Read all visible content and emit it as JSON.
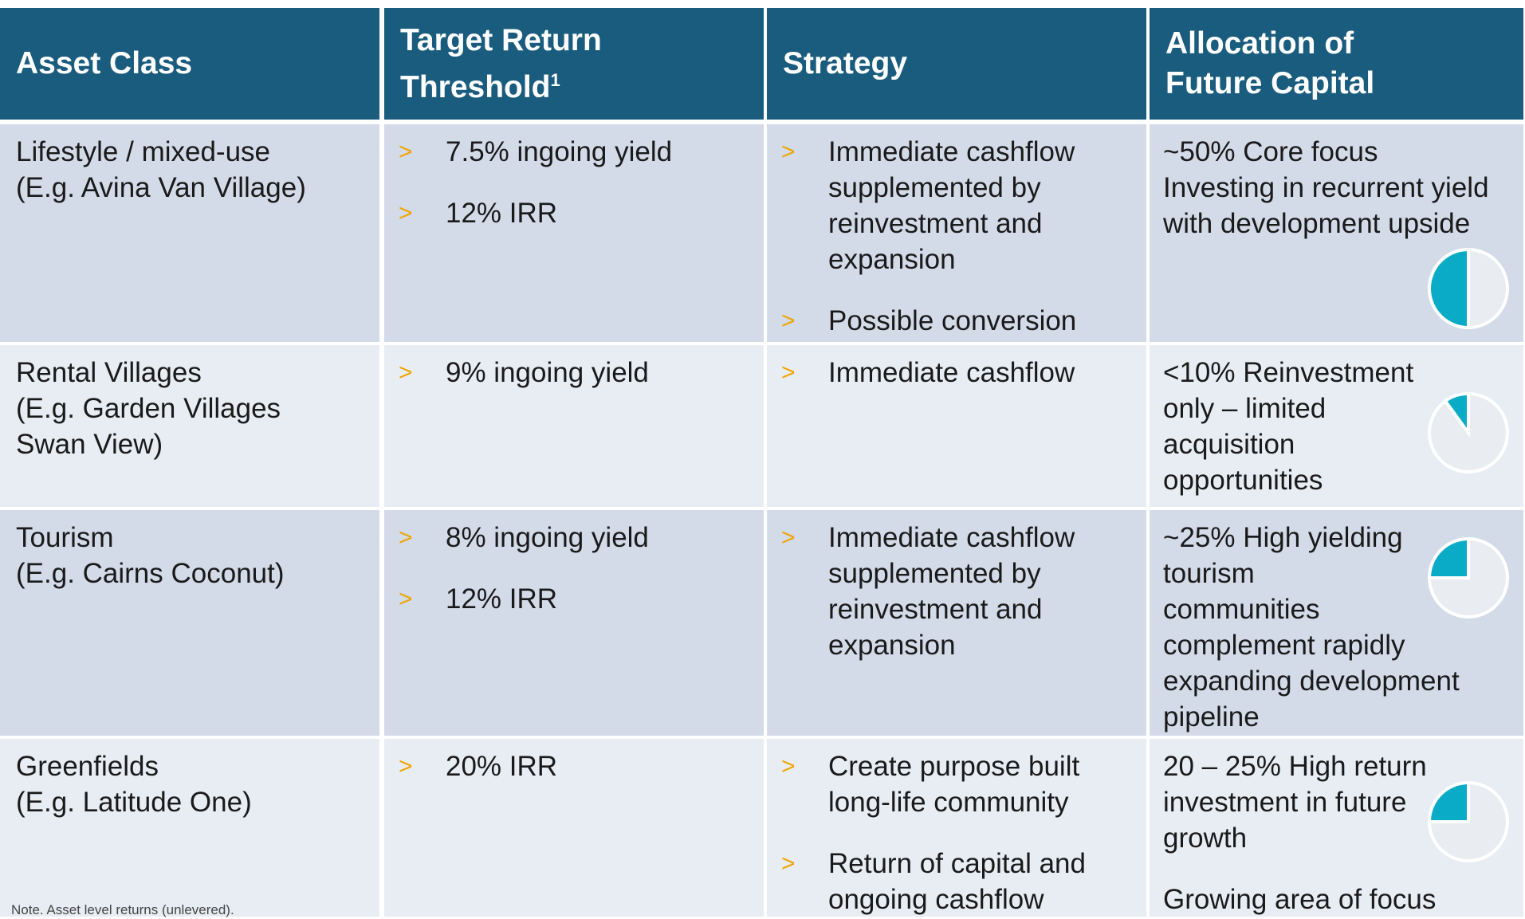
{
  "header": {
    "columns": [
      [
        "Asset Class"
      ],
      [
        "Target Return",
        "Threshold"
      ],
      [
        "Strategy"
      ],
      [
        "Allocation of",
        "Future Capital"
      ]
    ],
    "footnote_marker": "1"
  },
  "bullet": ">",
  "rows": [
    {
      "asset": [
        "Lifestyle / mixed-use",
        "(E.g. Avina Van Village)"
      ],
      "target": [
        [
          "7.5% ingoing yield"
        ],
        [
          "12% IRR"
        ]
      ],
      "strategy": [
        [
          "Immediate cashflow",
          "supplemented by",
          "reinvestment and",
          "expansion"
        ],
        [
          "Possible conversion"
        ]
      ],
      "allocation": [
        [
          "~50% Core focus",
          "Investing in recurrent yield",
          "with development upside"
        ]
      ]
    },
    {
      "asset": [
        "Rental Villages",
        "(E.g. Garden Villages",
        "Swan View)"
      ],
      "target": [
        [
          "9% ingoing yield"
        ]
      ],
      "strategy": [
        [
          "Immediate cashflow"
        ]
      ],
      "allocation": [
        [
          "<10% Reinvestment",
          "only – limited",
          "acquisition",
          "opportunities"
        ]
      ]
    },
    {
      "asset": [
        "Tourism",
        "(E.g. Cairns Coconut)"
      ],
      "target": [
        [
          "8% ingoing yield"
        ],
        [
          "12% IRR"
        ]
      ],
      "strategy": [
        [
          "Immediate cashflow",
          "supplemented by",
          "reinvestment and",
          "expansion"
        ]
      ],
      "allocation": [
        [
          "~25% High yielding",
          "tourism",
          "communities",
          "complement rapidly",
          "expanding development",
          "pipeline"
        ]
      ]
    },
    {
      "asset": [
        "Greenfields",
        "(E.g. Latitude One)"
      ],
      "target": [
        [
          "20% IRR"
        ]
      ],
      "strategy": [
        [
          "Create purpose built",
          "long-life community"
        ],
        [
          "Return of capital and",
          "ongoing cashflow"
        ]
      ],
      "allocation": [
        [
          "20 – 25% High return",
          "investment in future",
          "growth"
        ],
        [
          "Growing area of focus"
        ]
      ]
    }
  ],
  "note": "Note. Asset level returns (unlevered)."
}
